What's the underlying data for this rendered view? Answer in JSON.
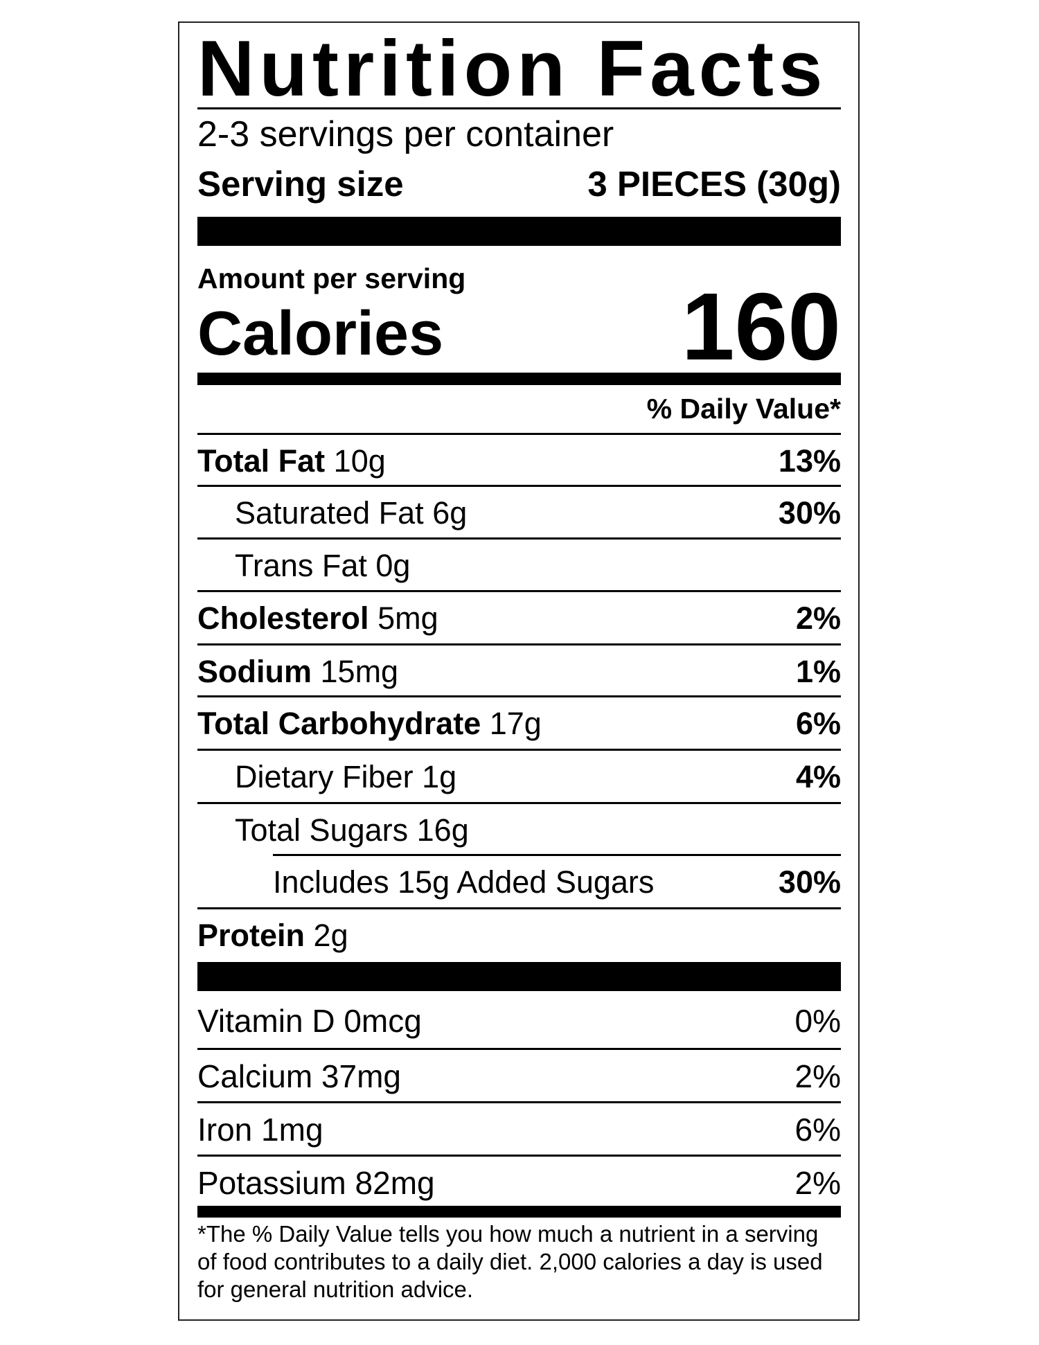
{
  "title": "Nutrition Facts",
  "servings_per_container": "2-3 servings per container",
  "serving_size": {
    "label": "Serving size",
    "value": "3 PIECES (30g)"
  },
  "amount_per_serving": "Amount per serving",
  "calories": {
    "label": "Calories",
    "value": "160"
  },
  "daily_value_header": "% Daily Value*",
  "nutrients": [
    {
      "name": "Total Fat",
      "amount": "10g",
      "dv": "13%"
    },
    {
      "name": "Saturated Fat",
      "amount": "6g",
      "dv": "30%"
    },
    {
      "name": "Trans Fat",
      "amount": "0g",
      "dv": ""
    },
    {
      "name": "Cholesterol",
      "amount": "5mg",
      "dv": "2%"
    },
    {
      "name": "Sodium",
      "amount": "15mg",
      "dv": "1%"
    },
    {
      "name": "Total Carbohydrate",
      "amount": "17g",
      "dv": "6%"
    },
    {
      "name": "Dietary Fiber",
      "amount": "1g",
      "dv": "4%"
    },
    {
      "name": "Total Sugars",
      "amount": "16g",
      "dv": ""
    },
    {
      "name": "Includes 15g Added Sugars",
      "amount": "",
      "dv": "30%"
    },
    {
      "name": "Protein",
      "amount": "2g",
      "dv": ""
    }
  ],
  "vitamins": [
    {
      "name": "Vitamin D 0mcg",
      "dv": "0%"
    },
    {
      "name": "Calcium 37mg",
      "dv": "2%"
    },
    {
      "name": "Iron 1mg",
      "dv": "6%"
    },
    {
      "name": "Potassium 82mg",
      "dv": "2%"
    }
  ],
  "footnote": "*The % Daily Value tells you how much a nutrient in a serving of food contributes to a daily diet. 2,000 calories a day is used for general nutrition advice."
}
